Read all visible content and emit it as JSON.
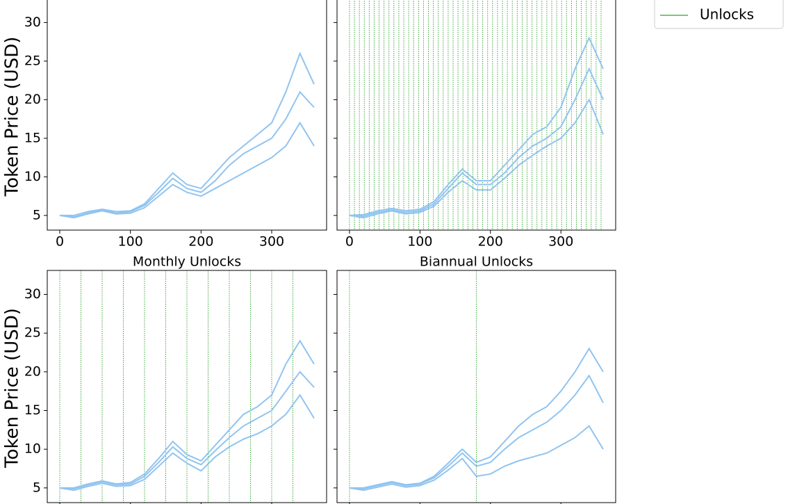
{
  "chart_data": [
    {
      "type": "line",
      "ylabel": "Token Price (USD)",
      "x": [
        0,
        20,
        40,
        60,
        80,
        100,
        120,
        140,
        160,
        180,
        200,
        220,
        240,
        260,
        280,
        300,
        320,
        340,
        360
      ],
      "series": [
        {
          "color": "#90c4f0",
          "values": [
            5,
            5,
            5.5,
            5.8,
            5.5,
            5.6,
            6.5,
            8.5,
            10.5,
            9,
            8.5,
            10.5,
            12.5,
            14,
            15.5,
            17,
            21,
            26,
            22
          ]
        },
        {
          "color": "#90c4f0",
          "values": [
            5,
            4.8,
            5.3,
            5.7,
            5.3,
            5.5,
            6.3,
            8,
            9.8,
            8.5,
            8,
            9.5,
            11.5,
            13,
            14,
            15,
            17.5,
            21,
            19
          ]
        },
        {
          "color": "#90c4f0",
          "values": [
            5,
            4.7,
            5.2,
            5.6,
            5.2,
            5.3,
            6,
            7.5,
            9,
            8,
            7.5,
            8.5,
            9.5,
            10.5,
            11.5,
            12.5,
            14,
            17,
            14
          ]
        }
      ],
      "unlocks": [],
      "unlock_color": "#2ca02c",
      "xlim": [
        -17.7,
        377.7
      ],
      "ylim": [
        3.1,
        33.1
      ],
      "xticks": [
        0,
        100,
        200,
        300
      ],
      "yticks": [
        5,
        10,
        15,
        20,
        25,
        30
      ],
      "ytick_labels": true
    },
    {
      "type": "line",
      "x": [
        0,
        20,
        40,
        60,
        80,
        100,
        120,
        140,
        160,
        180,
        200,
        220,
        240,
        260,
        280,
        300,
        320,
        340,
        360
      ],
      "series": [
        {
          "color": "#90c4f0",
          "values": [
            5,
            5.1,
            5.6,
            5.9,
            5.6,
            5.8,
            6.8,
            9,
            11,
            9.5,
            9.5,
            11.5,
            13.5,
            15.5,
            16.5,
            19,
            24,
            28,
            24
          ]
        },
        {
          "color": "#90c4f0",
          "values": [
            5,
            4.9,
            5.4,
            5.7,
            5.4,
            5.6,
            6.5,
            8.5,
            10.5,
            9,
            9,
            10.5,
            12.5,
            14,
            15,
            16.5,
            20,
            24,
            20
          ]
        },
        {
          "color": "#90c4f0",
          "values": [
            5,
            4.7,
            5.2,
            5.6,
            5.2,
            5.4,
            6.2,
            8,
            9.5,
            8.3,
            8.3,
            9.8,
            11.5,
            12.8,
            14,
            15,
            17,
            20,
            15.5
          ]
        }
      ],
      "unlocks": [
        0,
        7,
        14,
        21,
        28,
        35,
        42,
        49,
        56,
        63,
        70,
        77,
        84,
        91,
        98,
        105,
        112,
        119,
        126,
        133,
        140,
        147,
        154,
        161,
        168,
        175,
        182,
        189,
        196,
        203,
        210,
        217,
        224,
        231,
        238,
        245,
        252,
        259,
        266,
        273,
        280,
        287,
        294,
        301,
        308,
        315,
        322,
        329,
        336,
        343,
        350,
        357
      ],
      "unlock_color": "#2ca02c",
      "xlim": [
        -17.7,
        377.7
      ],
      "ylim": [
        3.1,
        33.1
      ],
      "xticks": [
        0,
        100,
        200,
        300
      ],
      "yticks": [
        5,
        10,
        15,
        20,
        25,
        30
      ],
      "ytick_labels": false
    },
    {
      "type": "line",
      "title": "Monthly Unlocks",
      "ylabel": "Token Price (USD)",
      "x": [
        0,
        20,
        40,
        60,
        80,
        100,
        120,
        140,
        160,
        180,
        200,
        220,
        240,
        260,
        280,
        300,
        320,
        340,
        360
      ],
      "series": [
        {
          "color": "#90c4f0",
          "values": [
            5,
            5,
            5.5,
            5.9,
            5.5,
            5.7,
            6.8,
            8.8,
            11,
            9.3,
            8.5,
            10.5,
            12.5,
            14.5,
            15.5,
            17,
            21,
            24,
            21
          ]
        },
        {
          "color": "#90c4f0",
          "values": [
            5,
            4.9,
            5.4,
            5.8,
            5.4,
            5.5,
            6.5,
            8.3,
            10.3,
            8.8,
            8,
            9.8,
            11.5,
            13,
            14,
            15,
            17.5,
            20,
            18
          ]
        },
        {
          "color": "#90c4f0",
          "values": [
            5,
            4.7,
            5.2,
            5.6,
            5.2,
            5.3,
            6.1,
            7.8,
            9.5,
            8.2,
            7.2,
            9,
            10.3,
            11.3,
            12,
            13,
            14.5,
            17,
            14
          ]
        }
      ],
      "unlocks": [
        0,
        30,
        60,
        90,
        120,
        150,
        180,
        210,
        240,
        270,
        300,
        330
      ],
      "unlock_color": "#2ca02c",
      "xlim": [
        -17.7,
        377.7
      ],
      "ylim": [
        3.1,
        33.1
      ],
      "xticks": [
        0,
        100,
        200,
        300
      ],
      "yticks": [
        5,
        10,
        15,
        20,
        25,
        30
      ],
      "ytick_labels": true
    },
    {
      "type": "line",
      "title": "Biannual Unlocks",
      "x": [
        0,
        20,
        40,
        60,
        80,
        100,
        120,
        140,
        160,
        180,
        200,
        220,
        240,
        260,
        280,
        300,
        320,
        340,
        360
      ],
      "series": [
        {
          "color": "#90c4f0",
          "values": [
            5,
            5,
            5.4,
            5.8,
            5.4,
            5.6,
            6.5,
            8.2,
            10,
            8.3,
            9,
            11,
            13,
            14.5,
            15.5,
            17.5,
            20,
            23,
            20
          ]
        },
        {
          "color": "#90c4f0",
          "values": [
            5,
            4.9,
            5.3,
            5.7,
            5.3,
            5.5,
            6.3,
            7.8,
            9.5,
            7.8,
            8.3,
            10,
            11.5,
            12.5,
            13.5,
            15,
            17,
            19.5,
            16
          ]
        },
        {
          "color": "#90c4f0",
          "values": [
            5,
            4.7,
            5.1,
            5.5,
            5.1,
            5.3,
            6,
            7.3,
            8.8,
            6.5,
            6.8,
            7.8,
            8.5,
            9,
            9.5,
            10.5,
            11.5,
            13,
            10
          ]
        }
      ],
      "unlocks": [
        0,
        180
      ],
      "unlock_color": "#2ca02c",
      "xlim": [
        -17.7,
        377.7
      ],
      "ylim": [
        3.1,
        33.1
      ],
      "xticks": [
        0,
        100,
        200,
        300
      ],
      "yticks": [
        5,
        10,
        15,
        20,
        25,
        30
      ],
      "ytick_labels": false
    }
  ],
  "legend": {
    "entries": [
      {
        "name": "Unlocks",
        "color": "#2ca02c"
      }
    ]
  }
}
